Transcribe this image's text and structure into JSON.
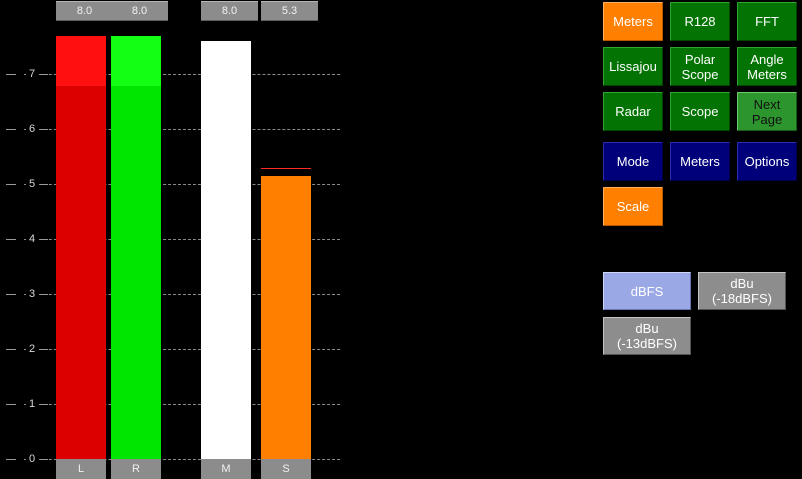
{
  "meter": {
    "scale_ticks": [
      "0",
      "1",
      "2",
      "3",
      "4",
      "5",
      "6",
      "7"
    ],
    "channels": [
      {
        "id": "L",
        "label": "L",
        "peak": "8.0",
        "level": 7.7,
        "color": "#dd0000",
        "highlight": "#ff0f0f"
      },
      {
        "id": "R",
        "label": "R",
        "peak": "8.0",
        "level": 7.7,
        "color": "#00e600",
        "highlight": "#13ff13"
      },
      {
        "id": "M",
        "label": "M",
        "peak": "8.0",
        "level": 7.6,
        "color": "#ffffff",
        "highlight": "#ffffff"
      },
      {
        "id": "S",
        "label": "S",
        "peak": "5.3",
        "level": 5.15,
        "hold": 5.3,
        "color": "#ff7f00",
        "highlight": "#ff7f00"
      }
    ]
  },
  "buttons": {
    "meters_top": "Meters",
    "r128": "R128",
    "fft": "FFT",
    "lissajou": "Lissajou",
    "polar_scope": "Polar\nScope",
    "angle_meters": "Angle\nMeters",
    "radar": "Radar",
    "scope": "Scope",
    "next_page": "Next\nPage",
    "mode": "Mode",
    "meters_blue": "Meters",
    "options": "Options",
    "scale": "Scale"
  },
  "scale_options": {
    "dbfs": "dBFS",
    "dbu_18": "dBu\n(-18dBFS)",
    "dbu_13": "dBu\n(-13dBFS)",
    "selected": "dBFS"
  },
  "colors": {
    "green": "#037303",
    "orange": "#ff7f00",
    "blue": "#00007a",
    "grey": "#8d8d8d",
    "selected_scale": "#9aa8e6",
    "hold_line": "#ff2a2a"
  }
}
